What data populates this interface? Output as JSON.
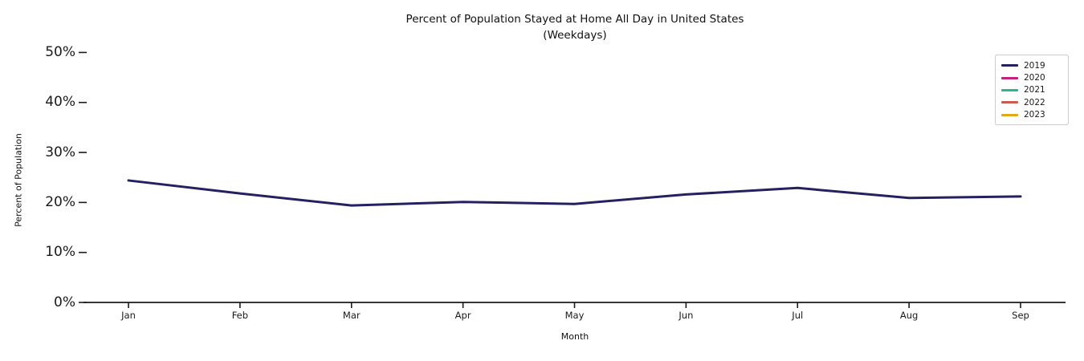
{
  "chart_data": {
    "type": "line",
    "title": "Percent of Population Stayed at Home All Day in United States",
    "subtitle": "(Weekdays)",
    "xlabel": "Month",
    "ylabel": "Percent of Population",
    "categories": [
      "Jan",
      "Feb",
      "Mar",
      "Apr",
      "May",
      "Jun",
      "Jul",
      "Aug",
      "Sep"
    ],
    "y_tick_labels": [
      "0%",
      "10%",
      "20%",
      "30%",
      "40%",
      "50%"
    ],
    "y_tick_values": [
      0,
      10,
      20,
      30,
      40,
      50
    ],
    "ylim": [
      0,
      52
    ],
    "grid": false,
    "legend_position": "upper right",
    "axis_color": "#1a1a1a",
    "series": [
      {
        "name": "2019",
        "color": "#252161",
        "values": [
          24.4,
          21.8,
          19.4,
          20.1,
          19.7,
          21.6,
          22.9,
          20.9,
          21.2
        ]
      },
      {
        "name": "2020",
        "color": "#c4217a",
        "values": []
      },
      {
        "name": "2021",
        "color": "#29b790",
        "values": []
      },
      {
        "name": "2022",
        "color": "#cd5a52",
        "values": []
      },
      {
        "name": "2023",
        "color": "#e3a818",
        "values": []
      }
    ]
  }
}
